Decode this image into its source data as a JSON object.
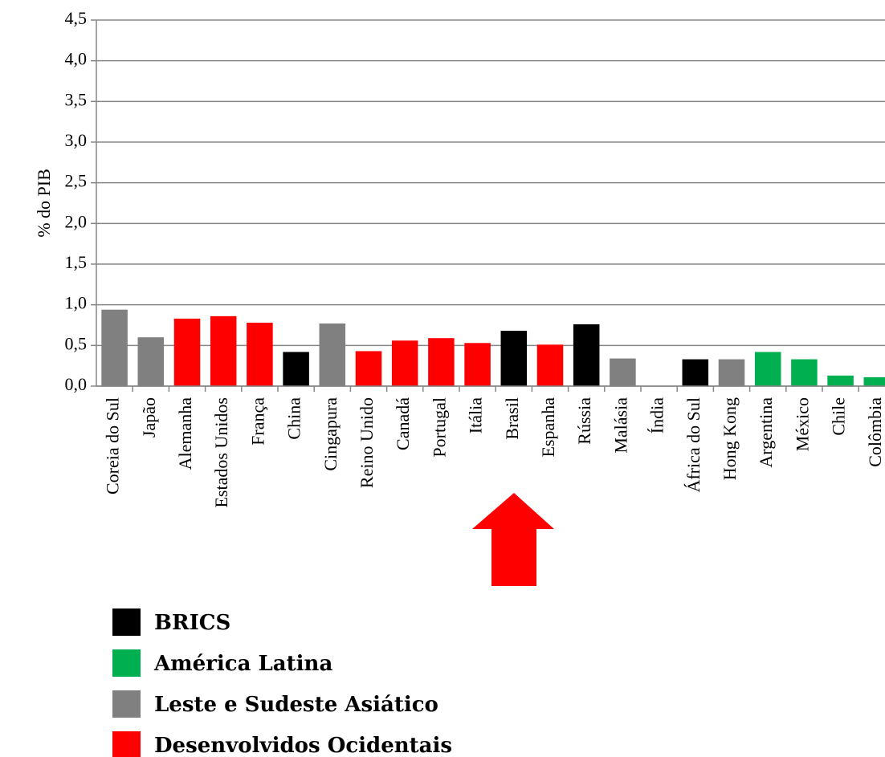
{
  "chart_data": {
    "type": "bar",
    "y_label": "% do PIB",
    "categories": [
      "Coreia do Sul",
      "Japão",
      "Alemanha",
      "Estados Unidos",
      "França",
      "China",
      "Cingapura",
      "Reino Unido",
      "Canadá",
      "Portugal",
      "Itália",
      "Brasil",
      "Espanha",
      "Rússia",
      "Malásia",
      "Índia",
      "África do Sul",
      "Hong Kong",
      "Argentina",
      "México",
      "Chile",
      "Colômbia"
    ],
    "values": [
      0.94,
      0.6,
      0.83,
      0.86,
      0.78,
      0.42,
      0.77,
      0.43,
      0.56,
      0.59,
      0.53,
      0.68,
      0.51,
      0.76,
      0.34,
      0,
      0.33,
      0.33,
      0.42,
      0.33,
      0.13,
      0.11
    ],
    "colors": [
      "#808080",
      "#808080",
      "#ff0000",
      "#ff0000",
      "#ff0000",
      "#000000",
      "#808080",
      "#ff0000",
      "#ff0000",
      "#ff0000",
      "#ff0000",
      "#000000",
      "#ff0000",
      "#000000",
      "#808080",
      "#000000",
      "#000000",
      "#808080",
      "#00b050",
      "#00b050",
      "#00b050",
      "#00b050"
    ],
    "ylim": [
      0,
      4.5
    ],
    "yticks": [
      {
        "value": 0,
        "label": "0,0"
      },
      {
        "value": 0.5,
        "label": "0,5"
      },
      {
        "value": 1,
        "label": "1,0"
      },
      {
        "value": 1.5,
        "label": "1,5"
      },
      {
        "value": 2,
        "label": "2,0"
      },
      {
        "value": 2.5,
        "label": "2,5"
      },
      {
        "value": 3,
        "label": "3,0"
      },
      {
        "value": 3.5,
        "label": "3,5"
      },
      {
        "value": 4,
        "label": "4,0"
      },
      {
        "value": 4.5,
        "label": "4,5"
      }
    ],
    "grid": true,
    "legend": [
      {
        "name": "BRICS",
        "color": "#000000"
      },
      {
        "name": "América Latina",
        "color": "#00b050"
      },
      {
        "name": "Leste e Sudeste Asiático",
        "color": "#808080"
      },
      {
        "name": "Desenvolvidos Ocidentais",
        "color": "#ff0000"
      }
    ]
  }
}
